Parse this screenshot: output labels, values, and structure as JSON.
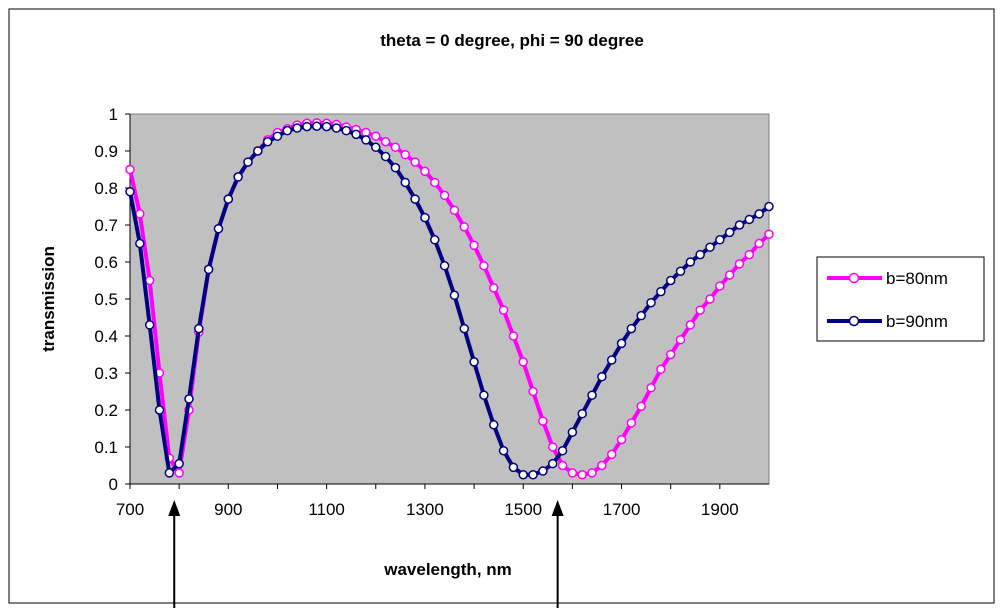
{
  "chart_data": {
    "type": "line",
    "title": "theta = 0 degree, phi = 90 degree",
    "xlabel": "wavelength, nm",
    "ylabel": "transmission",
    "xlim": [
      700,
      2000
    ],
    "ylim": [
      0,
      1
    ],
    "x_ticks": [
      "700",
      "900",
      "1100",
      "1300",
      "1500",
      "1700",
      "1900"
    ],
    "y_ticks": [
      "0",
      "0.1",
      "0.2",
      "0.3",
      "0.4",
      "0.5",
      "0.6",
      "0.7",
      "0.8",
      "0.9",
      "1"
    ],
    "grid": false,
    "plot_background": "#c0c0c0",
    "legend_position": "right",
    "annotations": [
      {
        "type": "arrow",
        "x": 790,
        "direction": "up"
      },
      {
        "type": "arrow",
        "x": 1570,
        "direction": "up"
      }
    ],
    "series": [
      {
        "name": "b=80nm",
        "color": "#ff00ff",
        "x": [
          700,
          720,
          740,
          760,
          780,
          800,
          820,
          840,
          860,
          880,
          900,
          920,
          940,
          960,
          980,
          1000,
          1020,
          1040,
          1060,
          1080,
          1100,
          1120,
          1140,
          1160,
          1180,
          1200,
          1220,
          1240,
          1260,
          1280,
          1300,
          1320,
          1340,
          1360,
          1380,
          1400,
          1420,
          1440,
          1460,
          1480,
          1500,
          1520,
          1540,
          1560,
          1580,
          1600,
          1620,
          1640,
          1660,
          1680,
          1700,
          1720,
          1740,
          1760,
          1780,
          1800,
          1820,
          1840,
          1860,
          1880,
          1900,
          1920,
          1940,
          1960,
          1980,
          2000
        ],
        "values": [
          0.85,
          0.73,
          0.55,
          0.3,
          0.07,
          0.03,
          0.2,
          0.41,
          0.58,
          0.69,
          0.77,
          0.83,
          0.87,
          0.9,
          0.93,
          0.95,
          0.96,
          0.97,
          0.975,
          0.976,
          0.975,
          0.972,
          0.965,
          0.958,
          0.95,
          0.94,
          0.925,
          0.91,
          0.89,
          0.87,
          0.845,
          0.815,
          0.78,
          0.74,
          0.695,
          0.645,
          0.59,
          0.53,
          0.47,
          0.4,
          0.33,
          0.25,
          0.17,
          0.1,
          0.05,
          0.03,
          0.025,
          0.03,
          0.05,
          0.08,
          0.12,
          0.165,
          0.21,
          0.26,
          0.31,
          0.35,
          0.39,
          0.43,
          0.47,
          0.5,
          0.535,
          0.565,
          0.595,
          0.62,
          0.65,
          0.675
        ]
      },
      {
        "name": "b=90nm",
        "color": "#000080",
        "x": [
          700,
          720,
          740,
          760,
          780,
          800,
          820,
          840,
          860,
          880,
          900,
          920,
          940,
          960,
          980,
          1000,
          1020,
          1040,
          1060,
          1080,
          1100,
          1120,
          1140,
          1160,
          1180,
          1200,
          1220,
          1240,
          1260,
          1280,
          1300,
          1320,
          1340,
          1360,
          1380,
          1400,
          1420,
          1440,
          1460,
          1480,
          1500,
          1520,
          1540,
          1560,
          1580,
          1600,
          1620,
          1640,
          1660,
          1680,
          1700,
          1720,
          1740,
          1760,
          1780,
          1800,
          1820,
          1840,
          1860,
          1880,
          1900,
          1920,
          1940,
          1960,
          1980,
          2000
        ],
        "values": [
          0.79,
          0.65,
          0.43,
          0.2,
          0.03,
          0.055,
          0.23,
          0.42,
          0.58,
          0.69,
          0.77,
          0.83,
          0.87,
          0.9,
          0.925,
          0.94,
          0.955,
          0.962,
          0.966,
          0.967,
          0.966,
          0.962,
          0.955,
          0.945,
          0.93,
          0.91,
          0.885,
          0.855,
          0.815,
          0.77,
          0.72,
          0.66,
          0.59,
          0.51,
          0.42,
          0.33,
          0.24,
          0.16,
          0.09,
          0.045,
          0.025,
          0.025,
          0.035,
          0.055,
          0.09,
          0.14,
          0.19,
          0.24,
          0.29,
          0.335,
          0.38,
          0.42,
          0.455,
          0.49,
          0.52,
          0.55,
          0.575,
          0.6,
          0.62,
          0.64,
          0.66,
          0.68,
          0.7,
          0.715,
          0.73,
          0.75
        ]
      }
    ]
  }
}
